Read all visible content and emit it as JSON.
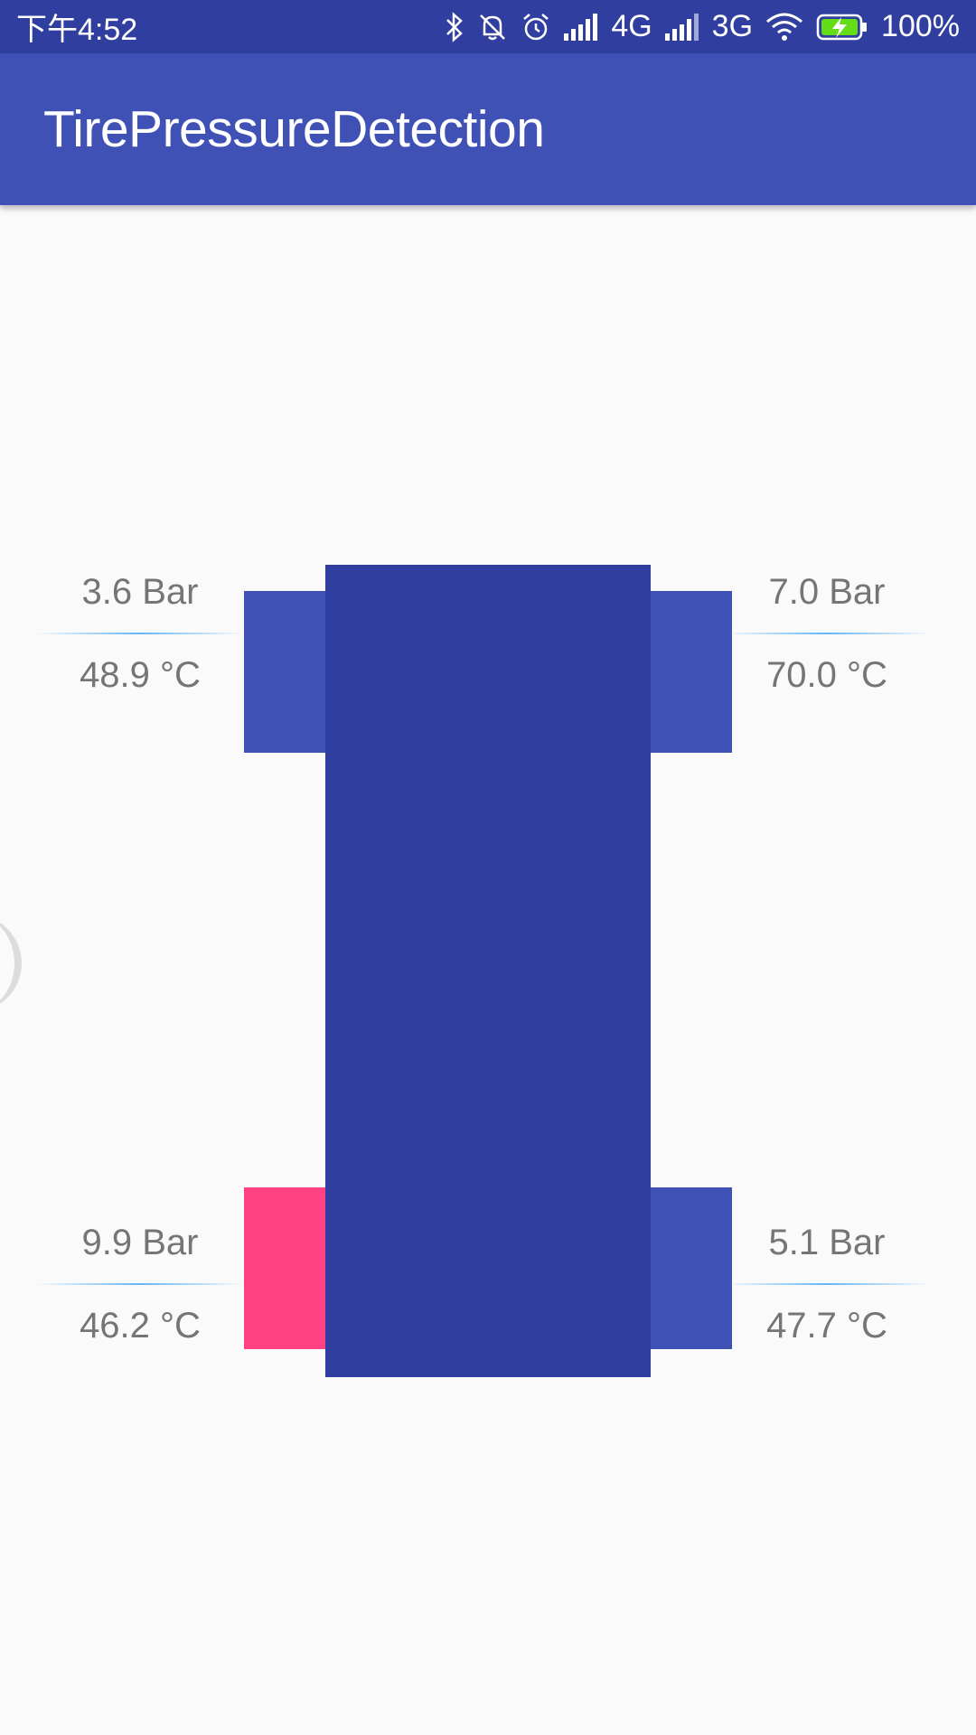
{
  "status_bar": {
    "time": "下午4:52",
    "network_4g": "4G",
    "network_3g": "3G",
    "battery": "100%",
    "icons": [
      "bluetooth-icon",
      "bell-off-icon",
      "alarm-icon",
      "signal-icon",
      "signal-icon",
      "wifi-icon",
      "battery-charging-icon"
    ]
  },
  "app_bar": {
    "title": "TirePressureDetection"
  },
  "colors": {
    "status_bar": "#303f9f",
    "app_bar": "#3f51b5",
    "car_body": "#303f9f",
    "tire_normal": "#3f51b5",
    "tire_alert": "#ff4081",
    "text": "#757575"
  },
  "tires": {
    "front_left": {
      "pressure": "3.6 Bar",
      "temperature": "48.9 °C",
      "status": "normal"
    },
    "front_right": {
      "pressure": "7.0 Bar",
      "temperature": "70.0 °C",
      "status": "normal"
    },
    "rear_left": {
      "pressure": "9.9 Bar",
      "temperature": "46.2 °C",
      "status": "alert"
    },
    "rear_right": {
      "pressure": "5.1 Bar",
      "temperature": "47.7 °C",
      "status": "normal"
    }
  }
}
